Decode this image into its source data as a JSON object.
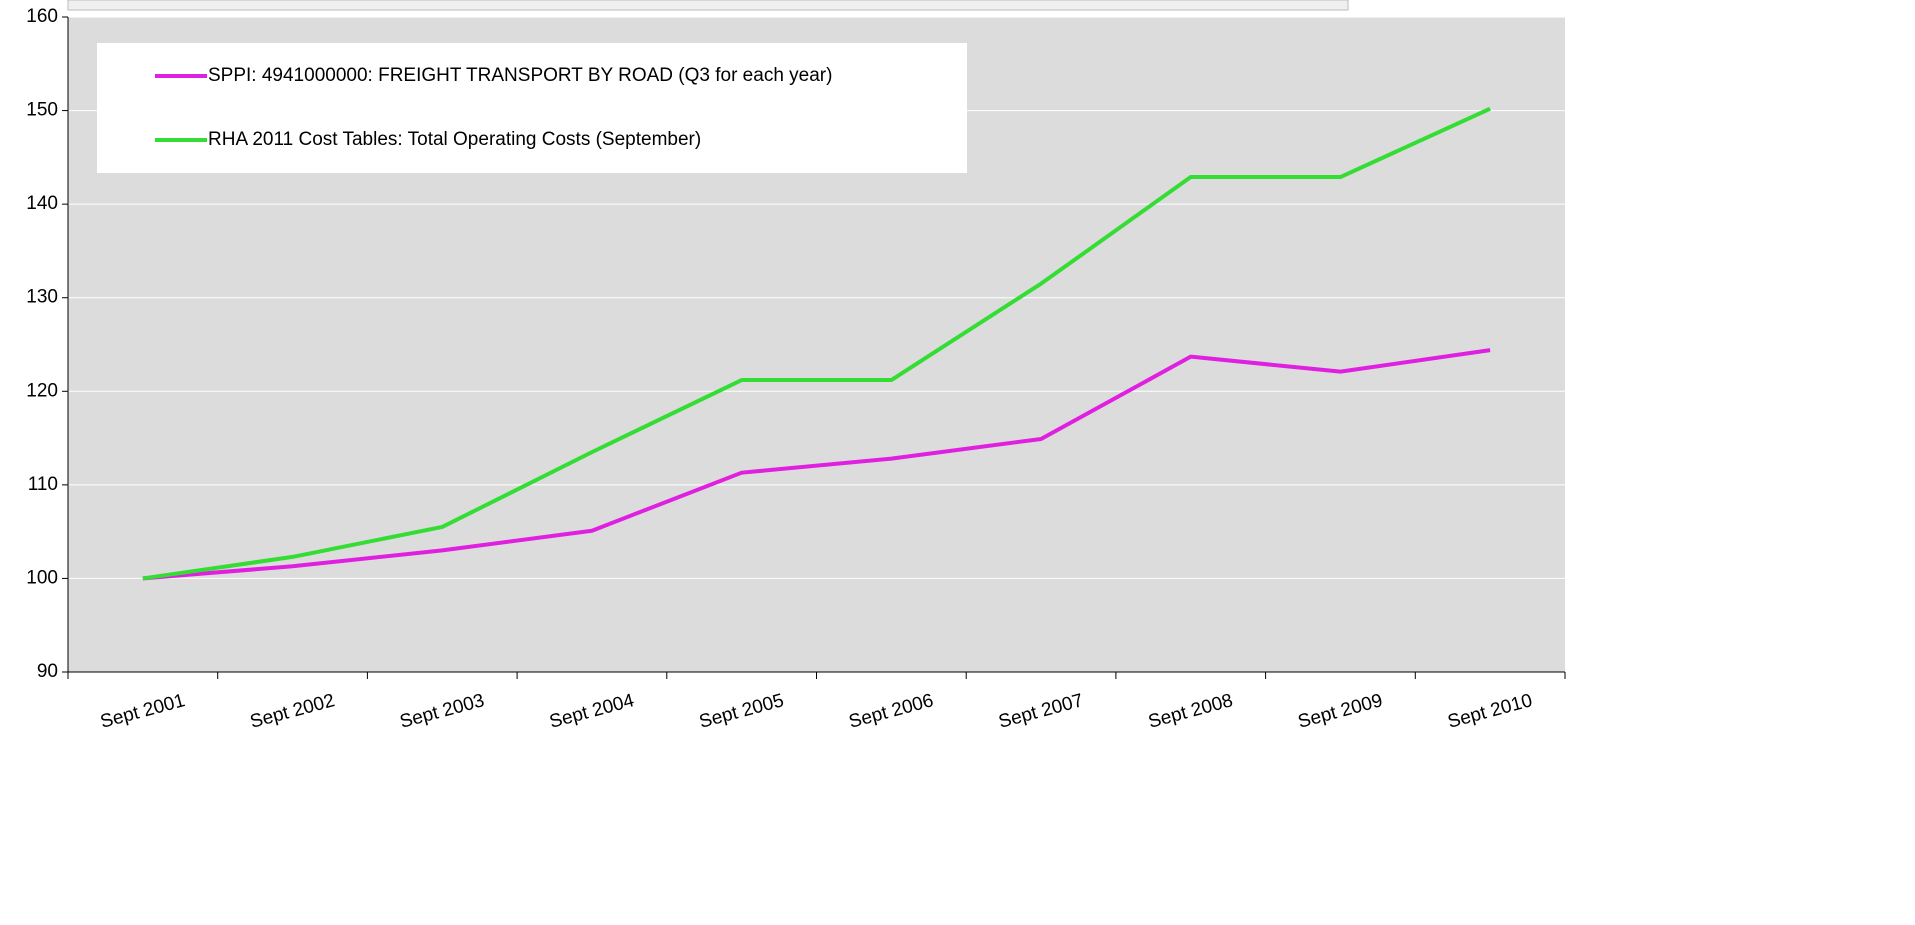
{
  "chart_data": {
    "type": "line",
    "categories": [
      "Sept 2001",
      "Sept 2002",
      "Sept 2003",
      "Sept 2004",
      "Sept 2005",
      "Sept 2006",
      "Sept 2007",
      "Sept 2008",
      "Sept 2009",
      "Sept 2010"
    ],
    "series": [
      {
        "name": "SPPI: 4941000000: FREIGHT TRANSPORT BY ROAD (Q3 for each year)",
        "color": "#e020e0",
        "values": [
          100,
          101.3,
          103,
          105.1,
          111.3,
          112.8,
          114.9,
          123.7,
          122.1,
          124.4
        ]
      },
      {
        "name": "RHA 2011 Cost Tables: Total Operating Costs (September)",
        "color": "#33dd33",
        "values": [
          100,
          102.3,
          105.5,
          113.5,
          121.2,
          121.2,
          131.5,
          142.9,
          142.9,
          150.2
        ]
      }
    ],
    "ylim": [
      90,
      160
    ],
    "yticks": [
      90,
      100,
      110,
      120,
      130,
      140,
      150,
      160
    ],
    "grid": true,
    "legend": "top-left"
  }
}
